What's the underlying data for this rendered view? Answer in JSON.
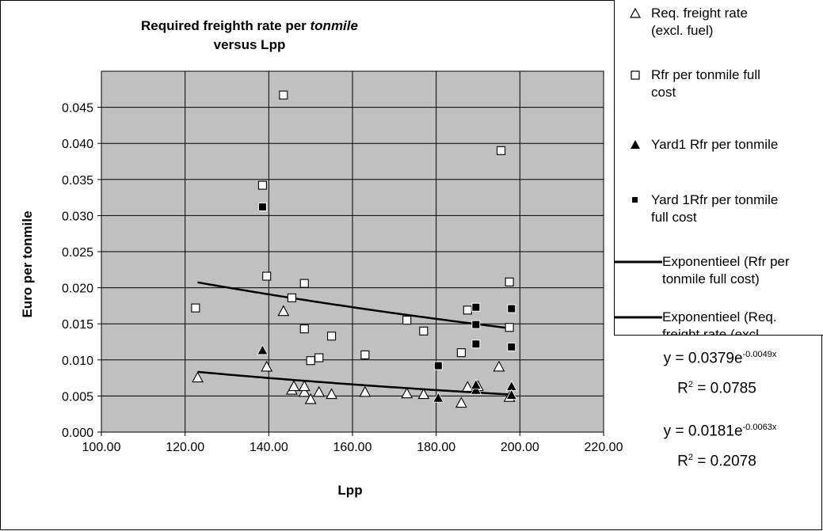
{
  "chart_data": {
    "type": "scatter",
    "title_line1": "Required freighth rate per ",
    "title_italic": "tonmile",
    "title_line2": "versus Lpp",
    "xlabel": "Lpp",
    "ylabel": "Euro per tonmile",
    "xlim": [
      100,
      220
    ],
    "ylim": [
      0,
      0.05
    ],
    "xticks": [
      "100.00",
      "120.00",
      "140.00",
      "160.00",
      "180.00",
      "200.00",
      "220.00"
    ],
    "yticks": [
      "0.000",
      "0.005",
      "0.010",
      "0.015",
      "0.020",
      "0.025",
      "0.030",
      "0.035",
      "0.040",
      "0.045"
    ],
    "grid": true,
    "plot_background": "#c0c0c0",
    "legend_position": "right",
    "series": [
      {
        "name": "Req. freight rate\n(excl. fuel)",
        "marker": "triangle-open",
        "points": [
          [
            123,
            0.0075
          ],
          [
            139.5,
            0.009
          ],
          [
            143.5,
            0.0167
          ],
          [
            145.5,
            0.0058
          ],
          [
            146,
            0.0063
          ],
          [
            148.5,
            0.0055
          ],
          [
            148.5,
            0.0063
          ],
          [
            150,
            0.0045
          ],
          [
            152,
            0.0055
          ],
          [
            155,
            0.0052
          ],
          [
            163,
            0.0055
          ],
          [
            173,
            0.0053
          ],
          [
            177,
            0.0052
          ],
          [
            186,
            0.004
          ],
          [
            187.5,
            0.0062
          ],
          [
            190,
            0.0063
          ],
          [
            195,
            0.009
          ],
          [
            197.5,
            0.0048
          ]
        ]
      },
      {
        "name": "Rfr per tonmile full\ncost",
        "marker": "square-open",
        "points": [
          [
            122.5,
            0.0172
          ],
          [
            138.5,
            0.0342
          ],
          [
            139.5,
            0.0216
          ],
          [
            143.5,
            0.0467
          ],
          [
            145.5,
            0.0186
          ],
          [
            148.5,
            0.0206
          ],
          [
            148.5,
            0.0143
          ],
          [
            150,
            0.0099
          ],
          [
            152,
            0.0103
          ],
          [
            155,
            0.0133
          ],
          [
            163,
            0.0107
          ],
          [
            173,
            0.0155
          ],
          [
            177,
            0.014
          ],
          [
            186,
            0.011
          ],
          [
            187.5,
            0.0169
          ],
          [
            195.5,
            0.039
          ],
          [
            197.5,
            0.0208
          ],
          [
            197.5,
            0.0145
          ]
        ]
      },
      {
        "name": "Yard1 Rfr per tonmile",
        "marker": "triangle-filled",
        "points": [
          [
            138.5,
            0.0113
          ],
          [
            180.5,
            0.0047
          ],
          [
            189.5,
            0.0058
          ],
          [
            189.5,
            0.0065
          ],
          [
            198,
            0.0063
          ],
          [
            198,
            0.0051
          ]
        ]
      },
      {
        "name": "Yard 1Rfr per tonmile\nfull cost",
        "marker": "square-filled",
        "points": [
          [
            138.5,
            0.0312
          ],
          [
            180.5,
            0.0092
          ],
          [
            189.5,
            0.0173
          ],
          [
            189.5,
            0.0149
          ],
          [
            189.5,
            0.0122
          ],
          [
            198,
            0.0171
          ],
          [
            198,
            0.0118
          ]
        ]
      }
    ],
    "trendlines": [
      {
        "name": "Exponentieel (Rfr per\ntonmile full cost)",
        "a": 0.0379,
        "b": -0.0049,
        "x_range": [
          123,
          198
        ],
        "eq_prefix": "y = 0.0379e",
        "eq_exp": "-0.0049x",
        "r2_prefix": "R",
        "r2_sup": "2",
        "r2_value": " = 0.0785"
      },
      {
        "name": "Exponentieel (Req.\nfreight rate (excl.",
        "a": 0.0181,
        "b": -0.0063,
        "x_range": [
          123,
          198
        ],
        "eq_prefix": "y = 0.0181e",
        "eq_exp": "-0.0063x",
        "r2_prefix": "R",
        "r2_sup": "2",
        "r2_value": " = 0.2078"
      }
    ]
  }
}
